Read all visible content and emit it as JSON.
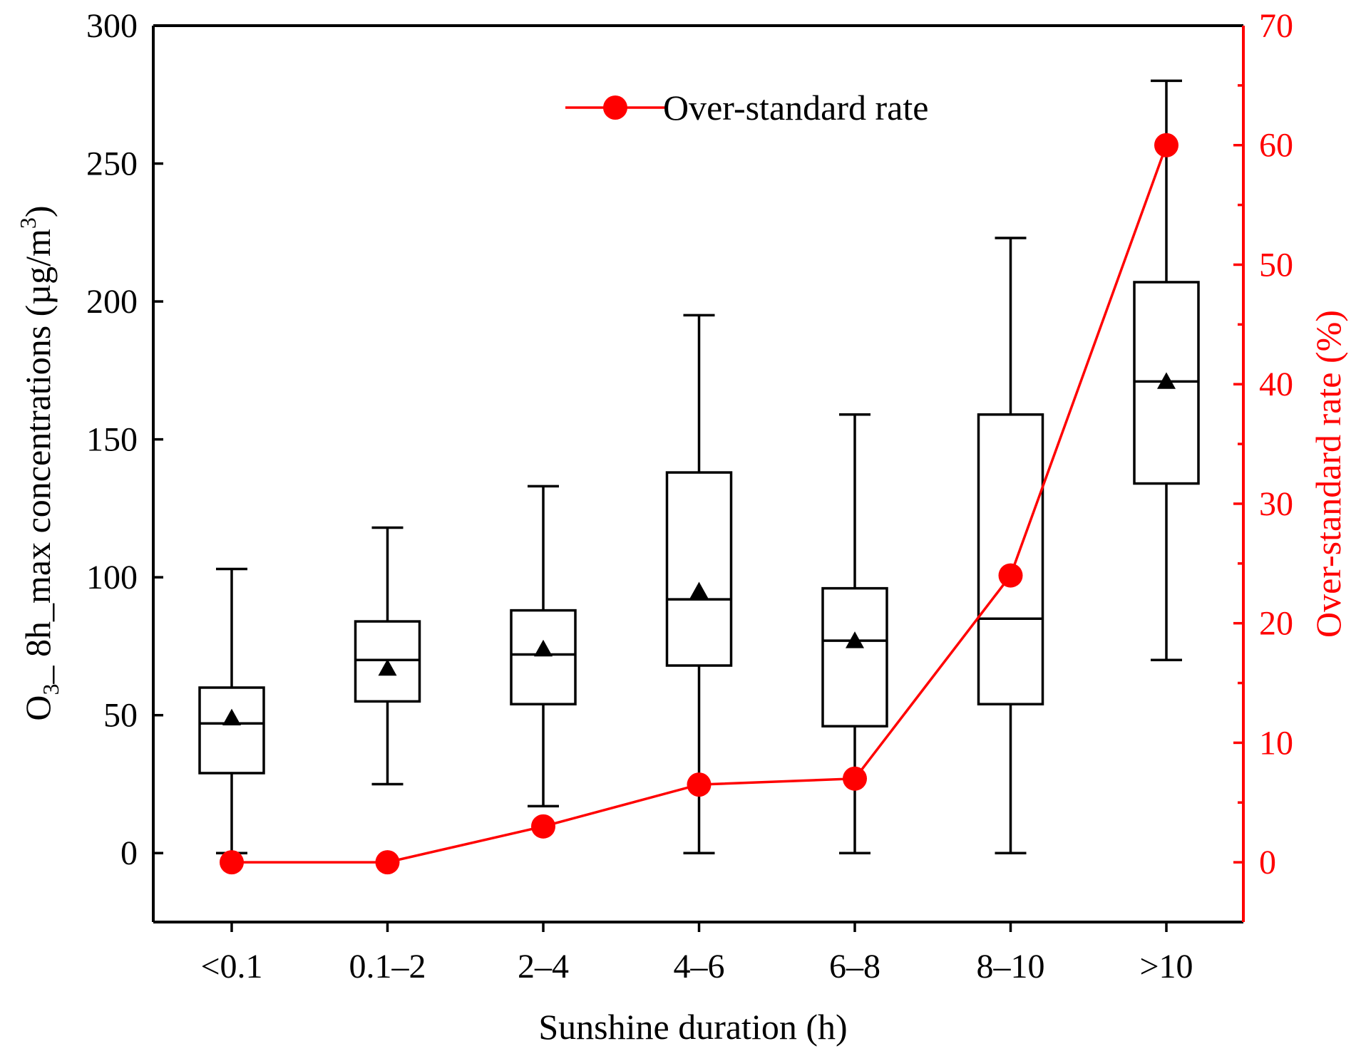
{
  "chart_data": {
    "type": "box",
    "xlabel": "Sunshine duration (h)",
    "ylabel": {
      "prefix": "O",
      "subscript": "3",
      "middle": "_ 8h_max concentrations (µg/m",
      "superscript": "3",
      "suffix": ")"
    },
    "y2label": "Over-standard rate (%)",
    "ylim": [
      -25,
      300
    ],
    "y2lim": [
      -5,
      70
    ],
    "yticks": [
      "0",
      "50",
      "100",
      "150",
      "200",
      "250",
      "300"
    ],
    "yticks_values": [
      0,
      50,
      100,
      150,
      200,
      250,
      300
    ],
    "y2ticks": [
      "0",
      "10",
      "20",
      "30",
      "40",
      "50",
      "60",
      "70"
    ],
    "y2ticks_values": [
      0,
      10,
      20,
      30,
      40,
      50,
      60,
      70
    ],
    "categories": [
      "<0.1",
      "0.1–2",
      "2–4",
      "4–6",
      "6–8",
      "8–10",
      ">10"
    ],
    "boxes": [
      {
        "min": 0,
        "q1": 29,
        "median": 47,
        "q3": 60,
        "max": 103,
        "mean": 49
      },
      {
        "min": 25,
        "q1": 55,
        "median": 70,
        "q3": 84,
        "max": 118,
        "mean": 67
      },
      {
        "min": 17,
        "q1": 54,
        "median": 72,
        "q3": 88,
        "max": 133,
        "mean": 74
      },
      {
        "min": 0,
        "q1": 68,
        "median": 92,
        "q3": 138,
        "max": 195,
        "mean": 95
      },
      {
        "min": 0,
        "q1": 46,
        "median": 77,
        "q3": 96,
        "max": 159,
        "mean": 77
      },
      {
        "min": 0,
        "q1": 54,
        "median": 85,
        "q3": 159,
        "max": 223,
        "mean": null
      },
      {
        "min": 70,
        "q1": 134,
        "median": 171,
        "q3": 207,
        "max": 280,
        "mean": 171
      }
    ],
    "series": [
      {
        "name": "Over-standard rate",
        "axis": "right",
        "values": [
          0,
          0,
          3,
          6.5,
          7,
          24,
          60
        ],
        "color": "#ff0000"
      }
    ],
    "legend": {
      "position": "top-center",
      "label": "Over-standard rate"
    }
  }
}
